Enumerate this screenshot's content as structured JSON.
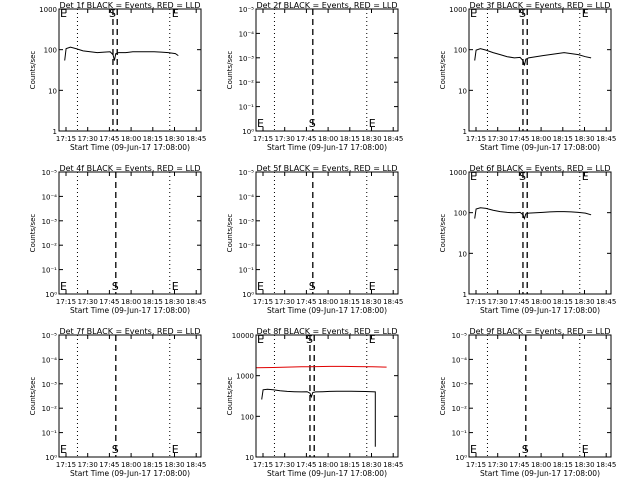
{
  "chart_data": [
    {
      "type": "line",
      "scale": "log",
      "title": "Det 1f BLACK = Events, RED = LLD",
      "xlabel": "Start Time (09-Jun-17 17:08:00)",
      "ylabel": "Counts/sec",
      "xticks": [
        "17:15",
        "17:30",
        "17:45",
        "18:00",
        "18:15",
        "18:30",
        "18:45"
      ],
      "yticks": [
        "1",
        "10",
        "100",
        "1000"
      ],
      "ylim": [
        1,
        1200
      ],
      "markers": {
        "E1": "E",
        "S": "S",
        "E2": "E"
      },
      "dotted_lines": [
        "17:21",
        "18:26"
      ],
      "dashed_lines": [
        "17:46",
        "17:49"
      ],
      "series": [
        {
          "color": "#000000",
          "points": [
            [
              "17:12",
              60
            ],
            [
              "17:13",
              120
            ],
            [
              "17:16",
              130
            ],
            [
              "17:20",
              120
            ],
            [
              "17:25",
              105
            ],
            [
              "17:30",
              100
            ],
            [
              "17:35",
              95
            ],
            [
              "17:40",
              98
            ],
            [
              "17:44",
              100
            ],
            [
              "17:46",
              85
            ],
            [
              "17:47",
              60
            ],
            [
              "17:48",
              90
            ],
            [
              "17:50",
              95
            ],
            [
              "17:55",
              95
            ],
            [
              "18:00",
              100
            ],
            [
              "18:05",
              100
            ],
            [
              "18:10",
              100
            ],
            [
              "18:15",
              100
            ],
            [
              "18:20",
              98
            ],
            [
              "18:25",
              95
            ],
            [
              "18:30",
              90
            ],
            [
              "18:32",
              80
            ]
          ]
        }
      ]
    },
    {
      "type": "line",
      "scale": "log",
      "title": "Det 2f BLACK = Events, RED = LLD",
      "xlabel": "Start Time (09-Jun-17 17:08:00)",
      "ylabel": "Counts/sec",
      "xticks": [
        "17:15",
        "17:30",
        "17:45",
        "18:00",
        "18:15",
        "18:30",
        "18:45"
      ],
      "yticks": [
        "10⁰",
        "10⁻¹",
        "10⁻²",
        "10⁻³",
        "10⁻⁴",
        "10⁻⁵"
      ],
      "markers": {
        "E1": "E",
        "S": "S",
        "E2": "E"
      },
      "dotted_lines": [
        "17:21",
        "18:26"
      ],
      "dashed_lines": [
        "17:48"
      ],
      "series": []
    },
    {
      "type": "line",
      "scale": "log",
      "title": "Det 3f BLACK = Events, RED = LLD",
      "xlabel": "Start Time (09-Jun-17 17:08:00)",
      "ylabel": "Counts/sec",
      "xticks": [
        "17:15",
        "17:30",
        "17:45",
        "18:00",
        "18:15",
        "18:30",
        "18:45"
      ],
      "yticks": [
        "1",
        "10",
        "100",
        "1000"
      ],
      "ylim": [
        1,
        1200
      ],
      "markers": {
        "E1": "E",
        "S": "S",
        "E2": "E"
      },
      "dotted_lines": [
        "17:21",
        "18:26"
      ],
      "dashed_lines": [
        "17:46",
        "17:49"
      ],
      "series": [
        {
          "color": "#000000",
          "points": [
            [
              "17:12",
              60
            ],
            [
              "17:13",
              110
            ],
            [
              "17:16",
              120
            ],
            [
              "17:20",
              110
            ],
            [
              "17:25",
              95
            ],
            [
              "17:30",
              85
            ],
            [
              "17:35",
              75
            ],
            [
              "17:40",
              70
            ],
            [
              "17:44",
              72
            ],
            [
              "17:46",
              60
            ],
            [
              "17:47",
              45
            ],
            [
              "17:48",
              65
            ],
            [
              "17:50",
              70
            ],
            [
              "17:55",
              75
            ],
            [
              "18:00",
              80
            ],
            [
              "18:05",
              85
            ],
            [
              "18:10",
              90
            ],
            [
              "18:15",
              95
            ],
            [
              "18:20",
              90
            ],
            [
              "18:25",
              85
            ],
            [
              "18:30",
              75
            ],
            [
              "18:34",
              70
            ]
          ]
        }
      ]
    },
    {
      "type": "line",
      "scale": "log",
      "title": "Det 4f BLACK = Events, RED = LLD",
      "xlabel": "Start Time (09-Jun-17 17:08:00)",
      "ylabel": "Counts/sec",
      "xticks": [
        "17:15",
        "17:30",
        "17:45",
        "18:00",
        "18:15",
        "18:30",
        "18:45"
      ],
      "yticks": [
        "10⁰",
        "10⁻¹",
        "10⁻²",
        "10⁻³",
        "10⁻⁴",
        "10⁻⁵"
      ],
      "markers": {
        "E1": "E",
        "S": "S",
        "E2": "E"
      },
      "dotted_lines": [
        "17:21",
        "18:26"
      ],
      "dashed_lines": [
        "17:48"
      ],
      "series": []
    },
    {
      "type": "line",
      "scale": "log",
      "title": "Det 5f BLACK = Events, RED = LLD",
      "xlabel": "Start Time (09-Jun-17 17:08:00)",
      "ylabel": "Counts/sec",
      "xticks": [
        "17:15",
        "17:30",
        "17:45",
        "18:00",
        "18:15",
        "18:30",
        "18:45"
      ],
      "yticks": [
        "10⁰",
        "10⁻¹",
        "10⁻²",
        "10⁻³",
        "10⁻⁴",
        "10⁻⁵"
      ],
      "markers": {
        "E1": "E",
        "S": "S",
        "E2": "E"
      },
      "dotted_lines": [
        "17:21",
        "18:26"
      ],
      "dashed_lines": [
        "17:48"
      ],
      "series": []
    },
    {
      "type": "line",
      "scale": "log",
      "title": "Det 6f BLACK = Events, RED = LLD",
      "xlabel": "Start Time (09-Jun-17 17:08:00)",
      "ylabel": "Counts/sec",
      "xticks": [
        "17:15",
        "17:30",
        "17:45",
        "18:00",
        "18:15",
        "18:30",
        "18:45"
      ],
      "yticks": [
        "1",
        "10",
        "100",
        "1000"
      ],
      "ylim": [
        1,
        1200
      ],
      "markers": {
        "E1": "E",
        "S": "S",
        "E2": "E"
      },
      "dotted_lines": [
        "17:21",
        "18:26"
      ],
      "dashed_lines": [
        "17:46",
        "17:49"
      ],
      "series": [
        {
          "color": "#000000",
          "points": [
            [
              "17:12",
              80
            ],
            [
              "17:13",
              140
            ],
            [
              "17:16",
              150
            ],
            [
              "17:20",
              145
            ],
            [
              "17:25",
              130
            ],
            [
              "17:30",
              120
            ],
            [
              "17:35",
              115
            ],
            [
              "17:40",
              112
            ],
            [
              "17:44",
              115
            ],
            [
              "17:46",
              100
            ],
            [
              "17:47",
              80
            ],
            [
              "17:48",
              105
            ],
            [
              "17:50",
              110
            ],
            [
              "17:55",
              112
            ],
            [
              "18:00",
              115
            ],
            [
              "18:05",
              118
            ],
            [
              "18:10",
              120
            ],
            [
              "18:15",
              120
            ],
            [
              "18:20",
              118
            ],
            [
              "18:25",
              115
            ],
            [
              "18:30",
              110
            ],
            [
              "18:34",
              100
            ]
          ]
        }
      ]
    },
    {
      "type": "line",
      "scale": "log",
      "title": "Det 7f BLACK = Events, RED = LLD",
      "xlabel": "Start Time (09-Jun-17 17:08:00)",
      "ylabel": "Counts/sec",
      "xticks": [
        "17:15",
        "17:30",
        "17:45",
        "18:00",
        "18:15",
        "18:30",
        "18:45"
      ],
      "yticks": [
        "10⁰",
        "10⁻¹",
        "10⁻²",
        "10⁻³",
        "10⁻⁴",
        "10⁻⁵"
      ],
      "markers": {
        "E1": "E",
        "S": "S",
        "E2": "E"
      },
      "dotted_lines": [
        "17:21",
        "18:26"
      ],
      "dashed_lines": [
        "17:48"
      ],
      "series": []
    },
    {
      "type": "line",
      "scale": "log",
      "title": "Det 8f BLACK = Events, RED = LLD",
      "xlabel": "Start Time (09-Jun-17 17:08:00)",
      "ylabel": "Counts/sec",
      "xticks": [
        "17:15",
        "17:30",
        "17:45",
        "18:00",
        "18:15",
        "18:30",
        "18:45"
      ],
      "yticks": [
        "10",
        "100",
        "1000",
        "10000"
      ],
      "ylim": [
        3,
        12000
      ],
      "markers": {
        "E1": "E",
        "S": "S",
        "E2": "E"
      },
      "dotted_lines": [
        "17:21",
        "18:26"
      ],
      "dashed_lines": [
        "17:46",
        "17:49"
      ],
      "series": [
        {
          "color": "#e00000",
          "points": [
            [
              "17:08",
              1300
            ],
            [
              "17:20",
              1320
            ],
            [
              "17:30",
              1350
            ],
            [
              "17:40",
              1380
            ],
            [
              "17:46",
              1380
            ],
            [
              "17:50",
              1400
            ],
            [
              "18:00",
              1420
            ],
            [
              "18:10",
              1420
            ],
            [
              "18:20",
              1400
            ],
            [
              "18:30",
              1380
            ],
            [
              "18:40",
              1350
            ]
          ]
        },
        {
          "color": "#000000",
          "points": [
            [
              "17:12",
              150
            ],
            [
              "17:13",
              290
            ],
            [
              "17:16",
              300
            ],
            [
              "17:20",
              290
            ],
            [
              "17:25",
              270
            ],
            [
              "17:30",
              260
            ],
            [
              "17:35",
              255
            ],
            [
              "17:40",
              250
            ],
            [
              "17:44",
              255
            ],
            [
              "17:46",
              230
            ],
            [
              "17:47",
              180
            ],
            [
              "17:48",
              240
            ],
            [
              "17:50",
              250
            ],
            [
              "17:55",
              255
            ],
            [
              "18:00",
              260
            ],
            [
              "18:05",
              262
            ],
            [
              "18:10",
              262
            ],
            [
              "18:15",
              262
            ],
            [
              "18:20",
              260
            ],
            [
              "18:25",
              258
            ],
            [
              "18:30",
              255
            ],
            [
              "18:32",
              250
            ],
            [
              "18:32",
              6
            ]
          ]
        }
      ]
    },
    {
      "type": "line",
      "scale": "log",
      "title": "Det 9f BLACK = Events, RED = LLD",
      "xlabel": "Start Time (09-Jun-17 17:08:00)",
      "ylabel": "Counts/sec",
      "xticks": [
        "17:15",
        "17:30",
        "17:45",
        "18:00",
        "18:15",
        "18:30",
        "18:45"
      ],
      "yticks": [
        "10⁰",
        "10⁻¹",
        "10⁻²",
        "10⁻³",
        "10⁻⁴",
        "10⁻⁵"
      ],
      "markers": {
        "E1": "E",
        "S": "S",
        "E2": "E"
      },
      "dotted_lines": [
        "17:21",
        "18:26"
      ],
      "dashed_lines": [
        "17:48"
      ],
      "series": []
    }
  ]
}
